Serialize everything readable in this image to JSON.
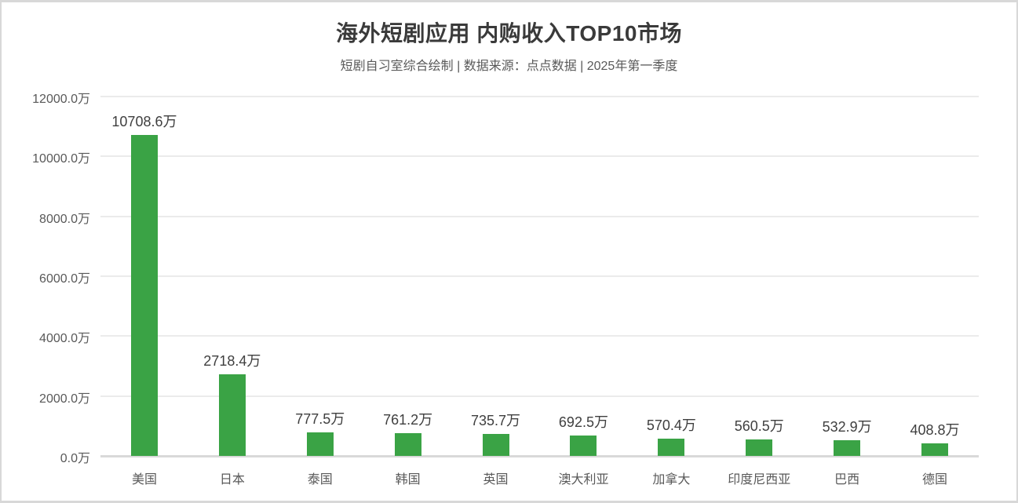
{
  "header": {
    "title": "海外短剧应用 内购收入TOP10市场",
    "subtitle": "短剧自习室综合绘制 | 数据来源：点点数据 | 2025年第一季度"
  },
  "chart_data": {
    "type": "bar",
    "title": "海外短剧应用 内购收入TOP10市场",
    "subtitle": "短剧自习室综合绘制 | 数据来源：点点数据 | 2025年第一季度",
    "categories": [
      "美国",
      "日本",
      "泰国",
      "韩国",
      "英国",
      "澳大利亚",
      "加拿大",
      "印度尼西亚",
      "巴西",
      "德国"
    ],
    "values": [
      10708.6,
      2718.4,
      777.5,
      761.2,
      735.7,
      692.5,
      570.4,
      560.5,
      532.9,
      408.8
    ],
    "value_labels": [
      "10708.6万",
      "2718.4万",
      "777.5万",
      "761.2万",
      "735.7万",
      "692.5万",
      "570.4万",
      "560.5万",
      "532.9万",
      "408.8万"
    ],
    "unit": "万",
    "xlabel": "",
    "ylabel": "",
    "ylim": [
      0,
      12000
    ],
    "ytick_step": 2000,
    "ytick_labels": [
      "0.0万",
      "2000.0万",
      "4000.0万",
      "6000.0万",
      "8000.0万",
      "10000.0万",
      "12000.0万"
    ],
    "grid": true,
    "legend": "none",
    "bar_color": "#3AA345"
  },
  "colors": {
    "bar": "#3AA345",
    "gridline": "#ebebeb",
    "baseline": "#d9d9d9",
    "title_text": "#3a3a3a",
    "subtitle_text": "#595959",
    "axis_text": "#595959",
    "value_text": "#3f3f3f",
    "frame_border": "#d8d8d8",
    "background": "#ffffff"
  }
}
